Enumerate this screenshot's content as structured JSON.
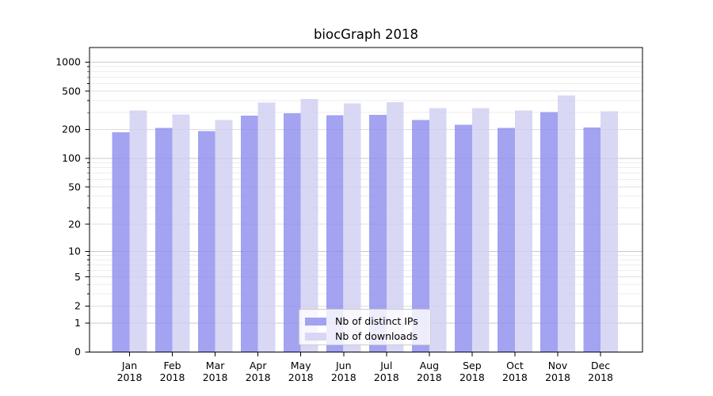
{
  "title": "biocGraph 2018",
  "chart_data": {
    "type": "bar",
    "title": "biocGraph 2018",
    "categories": [
      "Jan 2018",
      "Feb 2018",
      "Mar 2018",
      "Apr 2018",
      "May 2018",
      "Jun 2018",
      "Jul 2018",
      "Aug 2018",
      "Sep 2018",
      "Oct 2018",
      "Nov 2018",
      "Dec 2018"
    ],
    "series": [
      {
        "name": "Nb of distinct IPs",
        "color": "#8c8cee",
        "values": [
          187,
          207,
          192,
          279,
          295,
          281,
          284,
          252,
          225,
          208,
          303,
          210
        ]
      },
      {
        "name": "Nb of downloads",
        "color": "#cecef3",
        "values": [
          314,
          286,
          250,
          380,
          415,
          373,
          385,
          335,
          333,
          314,
          453,
          309
        ]
      }
    ],
    "yscale": "log10(v+1)",
    "y_tick_values": [
      0,
      1,
      2,
      5,
      10,
      20,
      50,
      100,
      200,
      500,
      1000
    ],
    "ylim": [
      0,
      1430
    ],
    "xlabel": "",
    "ylabel": "",
    "grid": "both",
    "legend_position": "lower center",
    "colors": {
      "grid_major": "#c9c9c9",
      "grid_mid": "#dfdfdf",
      "grid_minor": "#ededed",
      "axis": "#000000",
      "text": "#000000",
      "background": "#ffffff",
      "legend_border": "#cccccc"
    }
  }
}
